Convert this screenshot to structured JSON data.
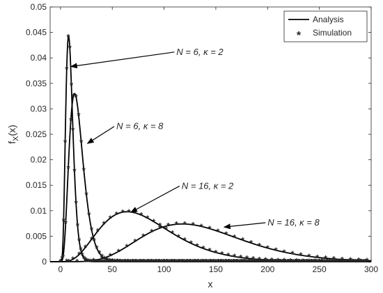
{
  "chart_data": {
    "type": "line",
    "xlabel": "x",
    "ylabel_main": "f",
    "ylabel_sub": "X",
    "ylabel_arg": "(x)",
    "xlim": [
      -10,
      300
    ],
    "ylim": [
      0,
      0.05
    ],
    "xticks": [
      0,
      50,
      100,
      150,
      200,
      250,
      300
    ],
    "xtick_labels": [
      "0",
      "50",
      "100",
      "150",
      "200",
      "250",
      "300"
    ],
    "yticks": [
      0,
      0.005,
      0.01,
      0.015,
      0.02,
      0.025,
      0.03,
      0.035,
      0.04,
      0.045,
      0.05
    ],
    "ytick_labels": [
      "0",
      "0.005",
      "0.01",
      "0.015",
      "0.02",
      "0.025",
      "0.03",
      "0.035",
      "0.04",
      "0.045",
      "0.05"
    ],
    "grid": false,
    "legend_position": "top-right",
    "legend": [
      {
        "label": "Analysis",
        "style": "solid line"
      },
      {
        "label": "Simulation",
        "style": "asterisk marker"
      }
    ],
    "series": [
      {
        "label": "N = 6, κ = 2",
        "peak_x": 7,
        "peak_y": 0.0443,
        "shape": 6,
        "scale": 1.56,
        "sim_step": 1.5,
        "sim_start": 0
      },
      {
        "label": "N = 6, κ = 8",
        "peak_x": 15,
        "peak_y": 0.033,
        "shape": 5,
        "scale": 3.4,
        "sim_step": 2.5,
        "sim_start": 0
      },
      {
        "label": "N = 16, κ = 2",
        "peak_x": 66,
        "peak_y": 0.0098,
        "shape": 4.5,
        "scale": 18.4,
        "sim_step": 6,
        "sim_start": 0
      },
      {
        "label": "N = 16, κ = 8",
        "peak_x": 122,
        "peak_y": 0.0074,
        "shape": 7,
        "scale": 19.6,
        "sim_step": 8,
        "sim_start": 8
      }
    ],
    "annotations": [
      {
        "text": "N = 6, κ = 2",
        "target_series": 0,
        "target_x": 10,
        "target_y": 0.0383,
        "text_x": 112,
        "text_y": 0.0406
      },
      {
        "text": "N = 6, κ = 8",
        "target_series": 1,
        "target_x": 26,
        "target_y": 0.0232,
        "text_x": 54,
        "text_y": 0.026
      },
      {
        "text": "N = 16, κ = 2",
        "target_series": 2,
        "target_x": 68,
        "target_y": 0.0097,
        "text_x": 117,
        "text_y": 0.0143
      },
      {
        "text": "N = 16, κ = 8",
        "target_series": 3,
        "target_x": 158,
        "target_y": 0.0068,
        "text_x": 200,
        "text_y": 0.0071
      }
    ]
  }
}
